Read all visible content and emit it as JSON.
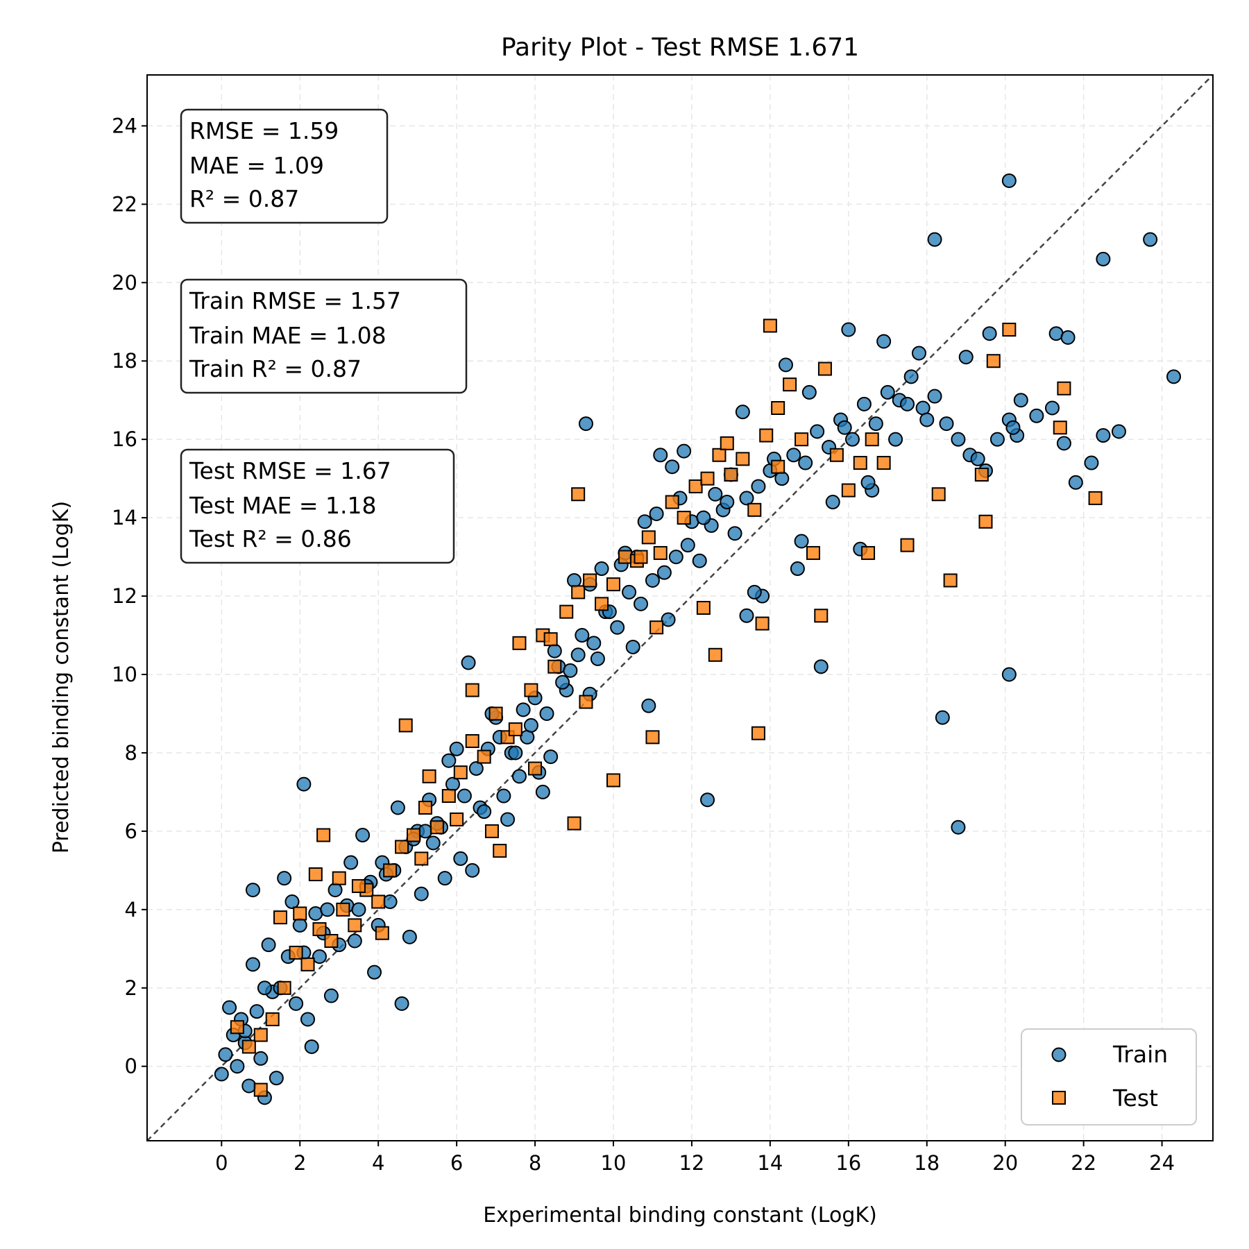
{
  "chart_data": {
    "type": "scatter",
    "title": "Parity Plot - Test RMSE 1.671",
    "xlabel": "Experimental binding constant (LogK)",
    "ylabel": "Predicted binding constant (LogK)",
    "xlim": [
      -1.9,
      25.3
    ],
    "ylim": [
      -1.9,
      25.3
    ],
    "xticks": [
      0,
      2,
      4,
      6,
      8,
      10,
      12,
      14,
      16,
      18,
      20,
      22,
      24
    ],
    "yticks": [
      0,
      2,
      4,
      6,
      8,
      10,
      12,
      14,
      16,
      18,
      20,
      22,
      24
    ],
    "grid": true,
    "legend_position": "bottom-right",
    "reference_line": "y = x",
    "stat_boxes": [
      [
        "RMSE = 1.59",
        "MAE = 1.09",
        "R²   = 0.87"
      ],
      [
        "Train RMSE = 1.57",
        "Train MAE = 1.08",
        "Train R² = 0.87"
      ],
      [
        "Test RMSE = 1.67",
        "Test MAE = 1.18",
        "Test R² = 0.86"
      ]
    ],
    "series": [
      {
        "name": "Train",
        "marker": "circle",
        "color": "#1f77b4",
        "x": [
          0.1,
          0.3,
          0.5,
          0.2,
          0.6,
          0.9,
          1.0,
          1.3,
          1.5,
          0.8,
          1.2,
          1.7,
          2.0,
          2.1,
          2.4,
          2.6,
          2.9,
          3.2,
          3.5,
          3.8,
          4.1,
          4.4,
          4.7,
          5.0,
          5.3,
          5.6,
          5.9,
          6.2,
          6.5,
          6.8,
          7.1,
          7.4,
          7.7,
          8.0,
          8.3,
          8.6,
          8.9,
          9.2,
          9.5,
          9.8,
          10.1,
          10.4,
          10.7,
          11.0,
          11.3,
          11.6,
          11.9,
          12.2,
          12.5,
          12.8,
          13.1,
          13.4,
          13.7,
          14.0,
          14.3,
          14.6,
          14.9,
          15.2,
          15.5,
          15.8,
          16.1,
          16.4,
          16.7,
          17.0,
          17.3,
          17.6,
          17.9,
          18.2,
          18.5,
          18.8,
          19.1,
          19.5,
          19.8,
          20.1,
          20.4,
          20.8,
          21.2,
          21.5,
          21.8,
          22.2,
          22.5,
          23.7,
          24.3,
          20.1,
          18.2,
          18.4,
          18.8,
          20.1,
          22.5,
          2.1,
          4.6,
          6.3,
          9.3,
          12.4,
          0.8,
          1.6,
          2.2,
          3.0,
          3.3,
          4.0,
          4.3,
          4.9,
          5.5,
          5.8,
          6.6,
          7.0,
          7.6,
          8.2,
          8.8,
          9.6,
          10.2,
          10.9,
          11.4,
          12.0,
          13.0,
          13.8,
          14.7,
          15.6,
          16.3,
          17.2,
          1.1,
          1.8,
          2.7,
          3.6,
          4.5,
          5.2,
          6.0,
          6.9,
          7.8,
          8.5,
          9.0,
          9.9,
          10.6,
          11.1,
          11.8,
          12.6,
          13.3,
          14.1,
          15.0,
          16.0,
          16.9,
          17.8,
          19.6,
          20.3,
          21.3,
          0.4,
          0.7,
          1.4,
          2.3,
          2.8,
          3.9,
          4.8,
          5.7,
          6.4,
          7.3,
          8.1,
          8.7,
          9.4,
          10.3,
          11.5,
          12.9,
          14.4,
          15.9,
          17.5,
          19.0,
          0.0,
          0.6,
          1.1,
          1.9,
          2.5,
          3.4,
          4.2,
          5.1,
          6.1,
          7.2,
          7.9,
          8.4,
          9.1,
          9.7,
          10.5,
          11.2,
          12.3,
          13.6,
          14.8,
          16.6,
          18.0,
          19.3,
          20.2,
          21.6,
          22.9,
          16.5,
          15.3,
          13.4,
          11.7,
          10.8,
          9.4,
          7.5,
          6.7,
          5.4,
          3.7
        ],
        "y": [
          0.3,
          0.8,
          1.2,
          1.5,
          0.6,
          1.4,
          0.2,
          1.9,
          2.0,
          2.6,
          3.1,
          2.8,
          3.6,
          2.9,
          3.9,
          3.4,
          4.5,
          4.1,
          4.0,
          4.7,
          5.2,
          5.0,
          5.6,
          6.0,
          6.8,
          6.1,
          7.2,
          6.9,
          7.6,
          8.1,
          8.4,
          8.0,
          9.1,
          9.4,
          9.0,
          10.2,
          10.1,
          11.0,
          10.8,
          11.6,
          11.2,
          12.1,
          11.8,
          12.4,
          12.6,
          13.0,
          13.3,
          12.9,
          13.8,
          14.2,
          13.6,
          14.5,
          14.8,
          15.2,
          15.0,
          15.6,
          15.4,
          16.2,
          15.8,
          16.5,
          16.0,
          16.9,
          16.4,
          17.2,
          17.0,
          17.6,
          16.8,
          17.1,
          16.4,
          16.0,
          15.6,
          15.2,
          16.0,
          16.5,
          17.0,
          16.6,
          16.8,
          15.9,
          14.9,
          15.4,
          16.1,
          21.1,
          17.6,
          22.6,
          21.1,
          8.9,
          6.1,
          10.0,
          20.6,
          7.2,
          1.6,
          10.3,
          16.4,
          6.8,
          4.5,
          4.8,
          1.2,
          3.1,
          5.2,
          3.6,
          4.2,
          5.8,
          6.2,
          7.8,
          6.6,
          8.9,
          7.4,
          7.0,
          9.6,
          10.4,
          12.8,
          9.2,
          11.4,
          13.9,
          15.1,
          12.0,
          12.7,
          14.4,
          13.2,
          16.0,
          2.0,
          4.2,
          4.0,
          5.9,
          6.6,
          6.0,
          8.1,
          9.0,
          8.4,
          10.6,
          12.4,
          11.6,
          13.0,
          14.1,
          15.7,
          14.6,
          16.7,
          15.5,
          17.2,
          18.8,
          18.5,
          18.2,
          18.7,
          16.1,
          18.7,
          0.0,
          -0.5,
          -0.3,
          0.5,
          1.8,
          2.4,
          3.3,
          4.8,
          5.0,
          6.3,
          7.5,
          9.8,
          12.3,
          13.1,
          15.3,
          14.4,
          17.9,
          16.3,
          16.9,
          18.1,
          -0.2,
          0.9,
          -0.8,
          1.6,
          2.8,
          3.2,
          4.9,
          4.4,
          5.3,
          6.9,
          8.7,
          7.9,
          10.5,
          12.7,
          10.7,
          15.6,
          14.0,
          12.1,
          13.4,
          14.7,
          16.5,
          15.5,
          16.3,
          18.6,
          16.2,
          14.9,
          10.2,
          11.5,
          14.5,
          13.9,
          9.5,
          8.0,
          6.5,
          5.7,
          4.6
        ]
      },
      {
        "name": "Test",
        "marker": "square",
        "color": "#ff7f0e",
        "x": [
          0.4,
          0.7,
          1.0,
          1.3,
          1.6,
          1.9,
          2.2,
          2.5,
          2.8,
          3.1,
          3.4,
          3.7,
          4.0,
          4.3,
          4.6,
          4.9,
          5.2,
          5.5,
          5.8,
          6.1,
          6.4,
          6.7,
          7.0,
          7.3,
          7.6,
          7.9,
          8.2,
          8.5,
          8.8,
          9.1,
          9.4,
          9.7,
          10.0,
          10.3,
          10.6,
          10.9,
          11.2,
          11.5,
          11.8,
          12.1,
          12.4,
          12.7,
          13.0,
          13.3,
          13.6,
          13.9,
          14.2,
          14.5,
          14.8,
          15.1,
          15.4,
          15.7,
          16.0,
          16.3,
          16.6,
          16.9,
          17.5,
          18.3,
          18.6,
          19.4,
          19.7,
          20.1,
          21.4,
          21.5,
          22.3,
          14.0,
          13.7,
          12.3,
          11.1,
          9.3,
          7.5,
          6.4,
          4.7,
          2.6,
          1.0,
          2.0,
          3.0,
          4.1,
          5.1,
          6.0,
          7.1,
          8.0,
          9.0,
          10.0,
          11.0,
          12.6,
          13.8,
          15.3,
          16.5,
          19.5,
          14.2,
          9.1,
          10.7,
          5.3,
          3.5,
          1.5,
          8.4,
          12.9,
          6.9,
          2.4
        ],
        "y": [
          1.0,
          0.5,
          0.8,
          1.2,
          2.0,
          2.9,
          2.6,
          3.5,
          3.2,
          4.0,
          3.6,
          4.5,
          4.2,
          5.0,
          5.6,
          5.9,
          6.6,
          6.1,
          6.9,
          7.5,
          8.3,
          7.9,
          9.0,
          8.4,
          10.8,
          9.6,
          11.0,
          10.2,
          11.6,
          12.1,
          12.4,
          11.8,
          12.3,
          13.0,
          12.9,
          13.5,
          13.1,
          14.4,
          14.0,
          14.8,
          15.0,
          15.6,
          15.1,
          15.5,
          14.2,
          16.1,
          15.3,
          17.4,
          16.0,
          13.1,
          17.8,
          15.6,
          14.7,
          15.4,
          16.0,
          15.4,
          13.3,
          14.6,
          12.4,
          15.1,
          18.0,
          18.8,
          16.3,
          17.3,
          14.5,
          18.9,
          8.5,
          11.7,
          11.2,
          9.3,
          8.6,
          9.6,
          8.7,
          5.9,
          -0.6,
          3.9,
          4.8,
          3.4,
          5.3,
          6.3,
          5.5,
          7.6,
          6.2,
          7.3,
          8.4,
          10.5,
          11.3,
          11.5,
          13.1,
          13.9,
          16.8,
          14.6,
          13.0,
          7.4,
          4.6,
          3.8,
          10.9,
          15.9,
          6.0,
          4.9
        ]
      }
    ]
  },
  "legend": {
    "train_label": "Train",
    "test_label": "Test"
  }
}
